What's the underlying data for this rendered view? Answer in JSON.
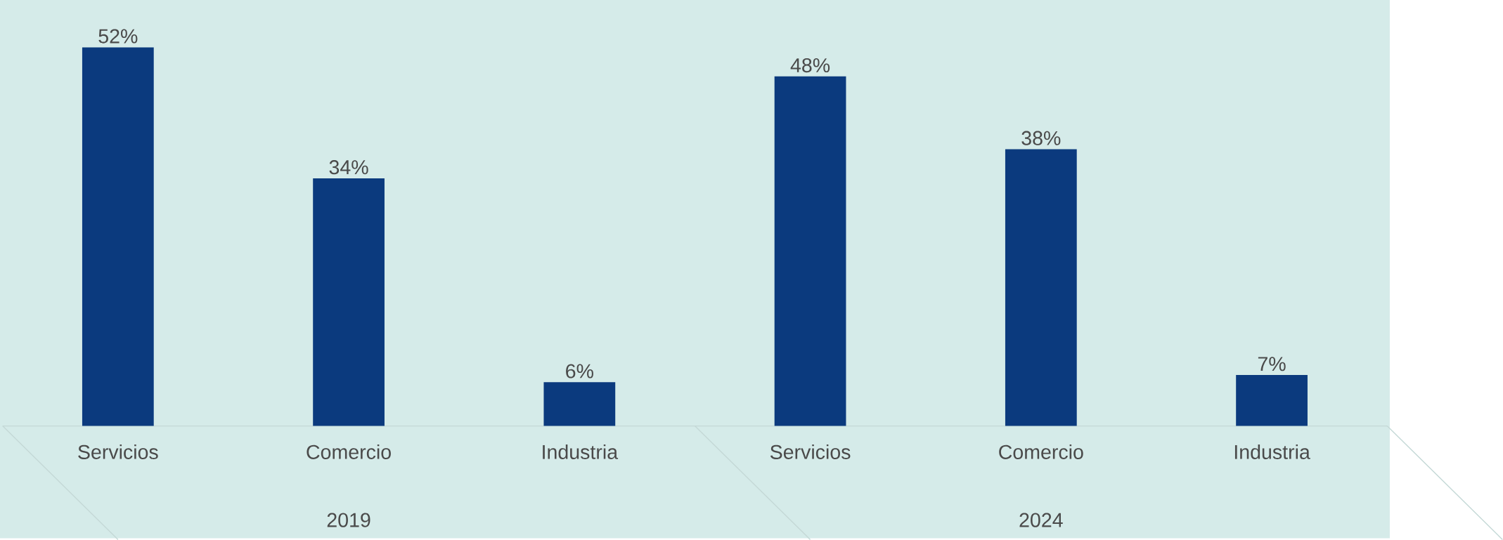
{
  "chart_data": {
    "type": "bar",
    "categories": [
      "Servicios",
      "Comercio",
      "Industria",
      "Servicios",
      "Comercio",
      "Industria"
    ],
    "values": [
      52,
      34,
      6,
      48,
      38,
      7
    ],
    "value_labels": [
      "52%",
      "34%",
      "6%",
      "48%",
      "38%",
      "7%"
    ],
    "color": "#0b3a7e",
    "annotations": [
      "2019",
      "2024"
    ]
  }
}
